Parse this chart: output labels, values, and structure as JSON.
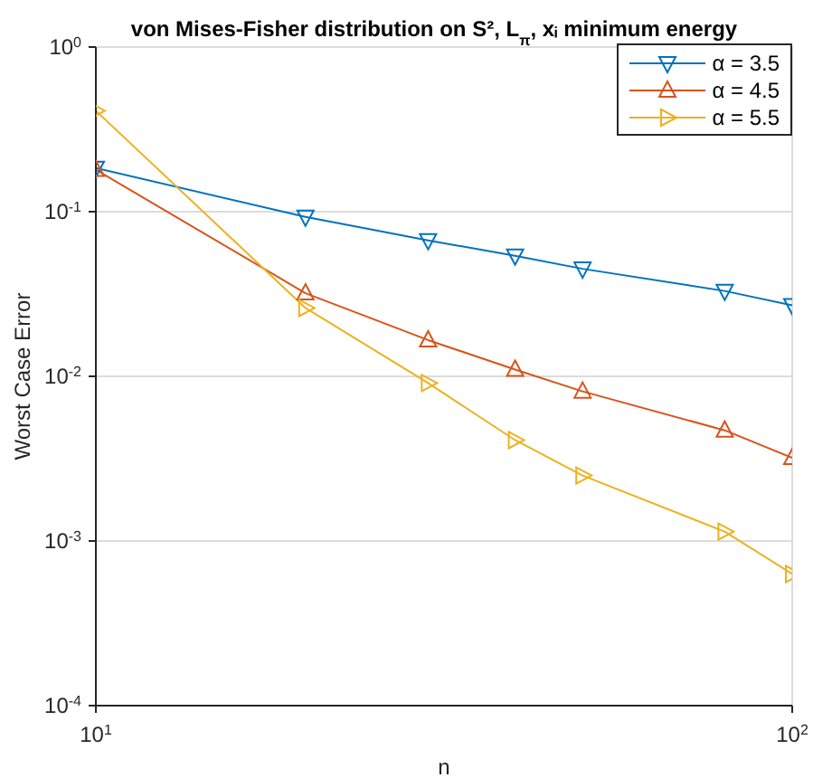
{
  "chart_data": {
    "type": "line",
    "title": "von Mises-Fisher distribution on S², L$_{π}$, xᵢ minimum energy",
    "xlabel": "n",
    "ylabel": "Worst Case Error",
    "x": [
      10,
      20,
      30,
      40,
      50,
      80,
      100
    ],
    "series": [
      {
        "name": "α = 3.5",
        "color": "#0072bd",
        "marker": "triangle",
        "values": [
          0.184,
          0.093,
          0.067,
          0.054,
          0.045,
          0.033,
          0.027
        ]
      },
      {
        "name": "α = 4.5",
        "color": "#d95319",
        "marker": "triangle",
        "values": [
          0.18,
          0.032,
          0.0166,
          0.011,
          0.0081,
          0.0047,
          0.0032
        ]
      },
      {
        "name": "α = 5.5",
        "color": "#edb120",
        "marker": "triangle",
        "values": [
          0.41,
          0.026,
          0.0091,
          0.0041,
          0.0025,
          0.00114,
          0.00063
        ]
      }
    ],
    "log": "xy",
    "xlim": [
      10,
      100
    ],
    "ylim": [
      0.0001,
      1
    ],
    "xticks": [
      {
        "value": 10,
        "label": "10$^{1}$"
      },
      {
        "value": 100,
        "label": "10$^{2}$"
      }
    ],
    "yticks": [
      {
        "value": 0.0001,
        "label": "10$^{-4}$"
      },
      {
        "value": 0.001,
        "label": "10$^{-3}$"
      },
      {
        "value": 0.01,
        "label": "10$^{-2}$"
      },
      {
        "value": 0.1,
        "label": "10$^{-1}$"
      },
      {
        "value": 1,
        "label": "10$^{0}$"
      }
    ],
    "grid": true,
    "legend": "top right"
  }
}
